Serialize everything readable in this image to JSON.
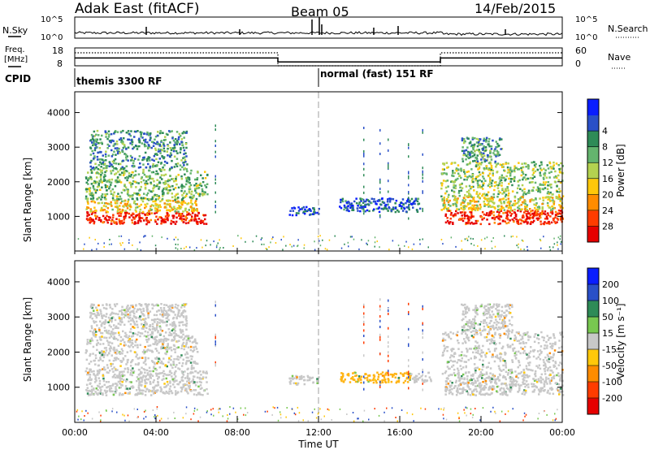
{
  "header": {
    "title": "Adak East (fitACF)",
    "beam": "Beam 05",
    "date": "14/Feb/2015"
  },
  "chart_data": [
    {
      "type": "line",
      "name": "noise panel",
      "left_label": "N.Sky",
      "right_label": "N.Search",
      "left_ticks": [
        "10^5",
        "10^0"
      ],
      "right_ticks": [
        "10^5",
        "10^0"
      ],
      "xlim": [
        0,
        24
      ]
    },
    {
      "type": "line",
      "name": "frequency / nave panel",
      "left_label": "Freq.",
      "left_unit": "[MHz]",
      "right_label": "Nave",
      "left_ticks": [
        18,
        8
      ],
      "right_ticks": [
        60,
        0
      ],
      "freq_series": {
        "x": [
          0,
          0.75,
          10.0,
          10.0,
          18.0,
          18.0,
          24.0
        ],
        "y": [
          14,
          14,
          14,
          11,
          11,
          14,
          14
        ]
      },
      "nave_series": {
        "x": [
          0,
          10.0,
          10.0,
          18.0,
          18.0,
          24.0
        ],
        "y": [
          18,
          18,
          8,
          8,
          18,
          18
        ]
      }
    },
    {
      "type": "table",
      "name": "cpid",
      "label": "CPID",
      "segments": [
        {
          "start": 0,
          "end": 12.0,
          "text": "themis 3300 RF"
        },
        {
          "start": 12.0,
          "end": 24.0,
          "text": "normal (fast) 151 RF"
        }
      ]
    },
    {
      "type": "heatmap",
      "name": "power",
      "ylabel": "Slant Range [km]",
      "ylim": [
        0,
        4600
      ],
      "yticks": [
        1000,
        2000,
        3000,
        4000
      ],
      "colorbar_label": "Power [dB]",
      "colorbar_ticks": [
        4,
        8,
        12,
        16,
        20,
        24,
        28
      ],
      "colors": [
        "#0a1eff",
        "#2a50c8",
        "#2e8b57",
        "#64b46e",
        "#b4d250",
        "#ffc80a",
        "#ff8c00",
        "#ff3c00",
        "#e60000"
      ],
      "regions": [
        {
          "t0": 0.5,
          "t1": 6.5,
          "r0": 800,
          "r1": 1150,
          "level": 0.92
        },
        {
          "t0": 0.5,
          "t1": 6.0,
          "r0": 1150,
          "r1": 1500,
          "level": 0.6
        },
        {
          "t0": 0.5,
          "t1": 6.5,
          "r0": 1500,
          "r1": 2400,
          "level": 0.4
        },
        {
          "t0": 0.7,
          "t1": 5.5,
          "r0": 2400,
          "r1": 3500,
          "level": 0.3
        },
        {
          "t0": 10.5,
          "t1": 12.0,
          "r0": 1050,
          "r1": 1300,
          "level": 0.12
        },
        {
          "t0": 13.0,
          "t1": 17.0,
          "r0": 1150,
          "r1": 1550,
          "level": 0.18
        },
        {
          "t0": 18.2,
          "t1": 24.0,
          "r0": 800,
          "r1": 1200,
          "level": 0.9
        },
        {
          "t0": 18.0,
          "t1": 24.0,
          "r0": 1200,
          "r1": 1600,
          "level": 0.55
        },
        {
          "t0": 18.0,
          "t1": 24.0,
          "r0": 1600,
          "r1": 2600,
          "level": 0.45
        },
        {
          "t0": 19.0,
          "t1": 21.0,
          "r0": 2600,
          "r1": 3300,
          "level": 0.3
        }
      ]
    },
    {
      "type": "heatmap",
      "name": "velocity",
      "ylabel": "Slant Range [km]",
      "ylim": [
        0,
        4600
      ],
      "yticks": [
        1000,
        2000,
        3000,
        4000
      ],
      "xlabel": "Time UT",
      "xticks": [
        "00:00",
        "04:00",
        "08:00",
        "12:00",
        "16:00",
        "20:00",
        "00:00"
      ],
      "colorbar_label": "Velocity [m s⁻¹]",
      "colorbar_ticks": [
        200,
        100,
        50,
        15,
        -15,
        -50,
        -100,
        -200
      ],
      "colors": [
        "#0a1eff",
        "#2a50c8",
        "#2e8b57",
        "#78c850",
        "#c8c8c8",
        "#ffc80a",
        "#ff8c00",
        "#ff3c00",
        "#e60000"
      ],
      "regions": [
        {
          "t0": 0.5,
          "t1": 6.5,
          "r0": 800,
          "r1": 1500,
          "level": "gray"
        },
        {
          "t0": 0.5,
          "t1": 6.0,
          "r0": 1500,
          "r1": 2500,
          "level": "gray"
        },
        {
          "t0": 0.7,
          "t1": 5.5,
          "r0": 2500,
          "r1": 3400,
          "level": "gray"
        },
        {
          "t0": 10.5,
          "t1": 12.0,
          "r0": 1100,
          "r1": 1350,
          "level": "gray"
        },
        {
          "t0": 13.0,
          "t1": 16.5,
          "r0": 1150,
          "r1": 1450,
          "level": "orange"
        },
        {
          "t0": 16.5,
          "t1": 17.5,
          "r0": 1150,
          "r1": 1450,
          "level": "gray"
        },
        {
          "t0": 18.2,
          "t1": 24.0,
          "r0": 800,
          "r1": 1400,
          "level": "gray"
        },
        {
          "t0": 18.0,
          "t1": 24.0,
          "r0": 1400,
          "r1": 2600,
          "level": "gray"
        },
        {
          "t0": 19.0,
          "t1": 21.5,
          "r0": 2600,
          "r1": 3400,
          "level": "gray"
        }
      ]
    }
  ]
}
